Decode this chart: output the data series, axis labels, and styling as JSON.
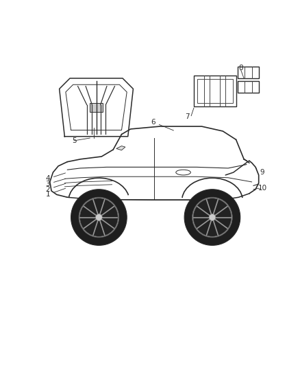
{
  "bg_color": "#ffffff",
  "line_color": "#2a2a2a",
  "fig_width": 4.38,
  "fig_height": 5.33,
  "dpi": 100,
  "lw": 1.0
}
